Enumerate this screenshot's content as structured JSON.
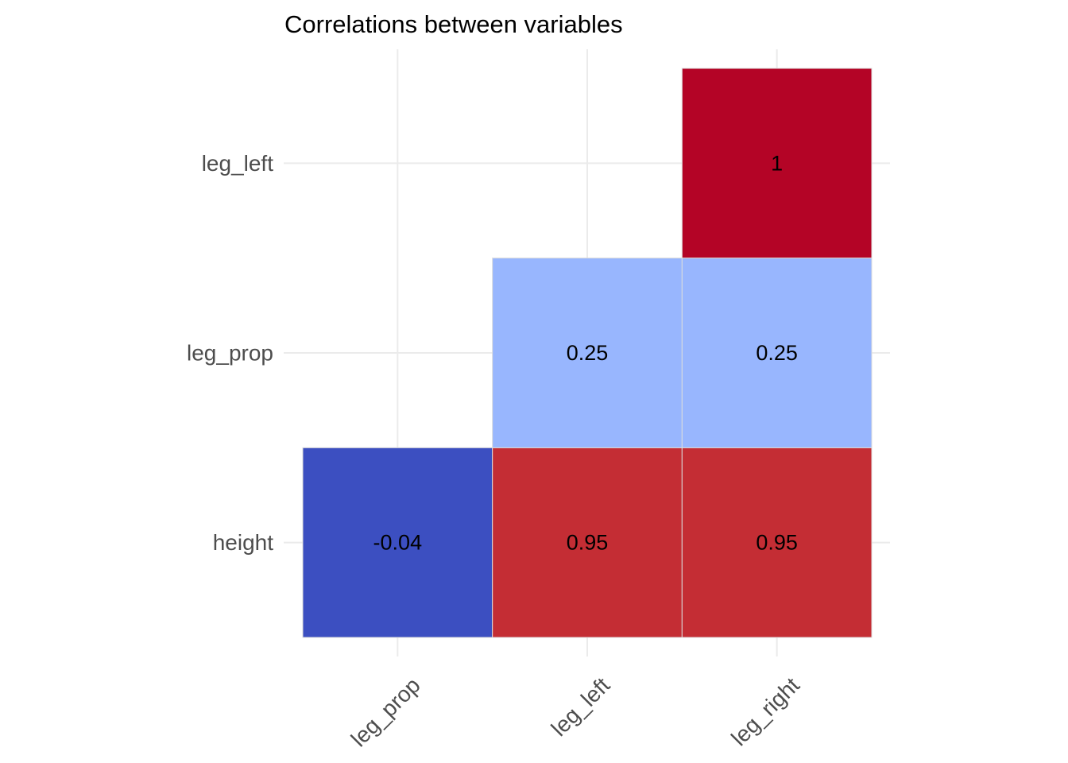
{
  "chart_data": {
    "type": "heatmap",
    "title": "Correlations between variables",
    "xlabel": "",
    "ylabel": "",
    "x_categories": [
      "leg_prop",
      "leg_left",
      "leg_right"
    ],
    "y_categories": [
      "height",
      "leg_prop",
      "leg_left"
    ],
    "grid": true,
    "cells": [
      {
        "x": "leg_prop",
        "y": "height",
        "value": -0.04,
        "label": "-0.04",
        "color": "#3C4FC1"
      },
      {
        "x": "leg_left",
        "y": "height",
        "value": 0.95,
        "label": "0.95",
        "color": "#C42D34"
      },
      {
        "x": "leg_right",
        "y": "height",
        "value": 0.95,
        "label": "0.95",
        "color": "#C42D34"
      },
      {
        "x": "leg_left",
        "y": "leg_prop",
        "value": 0.25,
        "label": "0.25",
        "color": "#98B6FE"
      },
      {
        "x": "leg_right",
        "y": "leg_prop",
        "value": 0.25,
        "label": "0.25",
        "color": "#98B6FE"
      },
      {
        "x": "leg_right",
        "y": "leg_left",
        "value": 1,
        "label": "1",
        "color": "#B40426"
      }
    ]
  }
}
